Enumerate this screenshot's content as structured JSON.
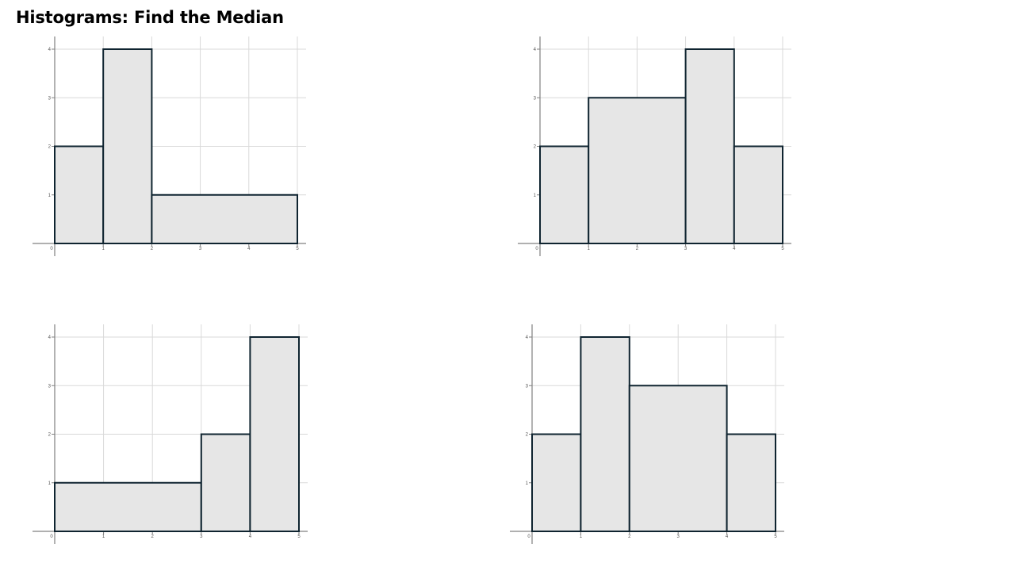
{
  "page": {
    "title": "Histograms: Find the Median"
  },
  "style": {
    "bar_fill": "#e6e6e6",
    "bar_stroke": "#0f2430",
    "grid_color": "#d9d9d9",
    "axis_color": "#808080",
    "tick_label_color": "#555555"
  },
  "chart_data": [
    {
      "type": "bar",
      "title": "",
      "xlabel": "",
      "ylabel": "",
      "xlim": [
        0,
        5
      ],
      "ylim": [
        0,
        4
      ],
      "x_ticks": [
        0,
        1,
        2,
        3,
        4,
        5
      ],
      "y_ticks": [
        1,
        2,
        3,
        4
      ],
      "grid": true,
      "bins": [
        {
          "start": 0,
          "end": 1,
          "value": 2
        },
        {
          "start": 1,
          "end": 2,
          "value": 4
        },
        {
          "start": 2,
          "end": 5,
          "value": 1
        }
      ]
    },
    {
      "type": "bar",
      "title": "",
      "xlabel": "",
      "ylabel": "",
      "xlim": [
        0,
        5
      ],
      "ylim": [
        0,
        4
      ],
      "x_ticks": [
        0,
        1,
        2,
        3,
        4,
        5
      ],
      "y_ticks": [
        1,
        2,
        3,
        4
      ],
      "grid": true,
      "bins": [
        {
          "start": 0,
          "end": 1,
          "value": 2
        },
        {
          "start": 1,
          "end": 3,
          "value": 3
        },
        {
          "start": 3,
          "end": 4,
          "value": 4
        },
        {
          "start": 4,
          "end": 5,
          "value": 2
        }
      ]
    },
    {
      "type": "bar",
      "title": "",
      "xlabel": "",
      "ylabel": "",
      "xlim": [
        0,
        5
      ],
      "ylim": [
        0,
        4
      ],
      "x_ticks": [
        0,
        1,
        2,
        3,
        4,
        5
      ],
      "y_ticks": [
        1,
        2,
        3,
        4
      ],
      "grid": true,
      "bins": [
        {
          "start": 0,
          "end": 3,
          "value": 1
        },
        {
          "start": 3,
          "end": 4,
          "value": 2
        },
        {
          "start": 4,
          "end": 5,
          "value": 4
        }
      ]
    },
    {
      "type": "bar",
      "title": "",
      "xlabel": "",
      "ylabel": "",
      "xlim": [
        0,
        5
      ],
      "ylim": [
        0,
        4
      ],
      "x_ticks": [
        0,
        1,
        2,
        3,
        4,
        5
      ],
      "y_ticks": [
        1,
        2,
        3,
        4
      ],
      "grid": true,
      "bins": [
        {
          "start": 0,
          "end": 1,
          "value": 2
        },
        {
          "start": 1,
          "end": 2,
          "value": 4
        },
        {
          "start": 2,
          "end": 4,
          "value": 3
        },
        {
          "start": 4,
          "end": 5,
          "value": 2
        }
      ]
    }
  ]
}
